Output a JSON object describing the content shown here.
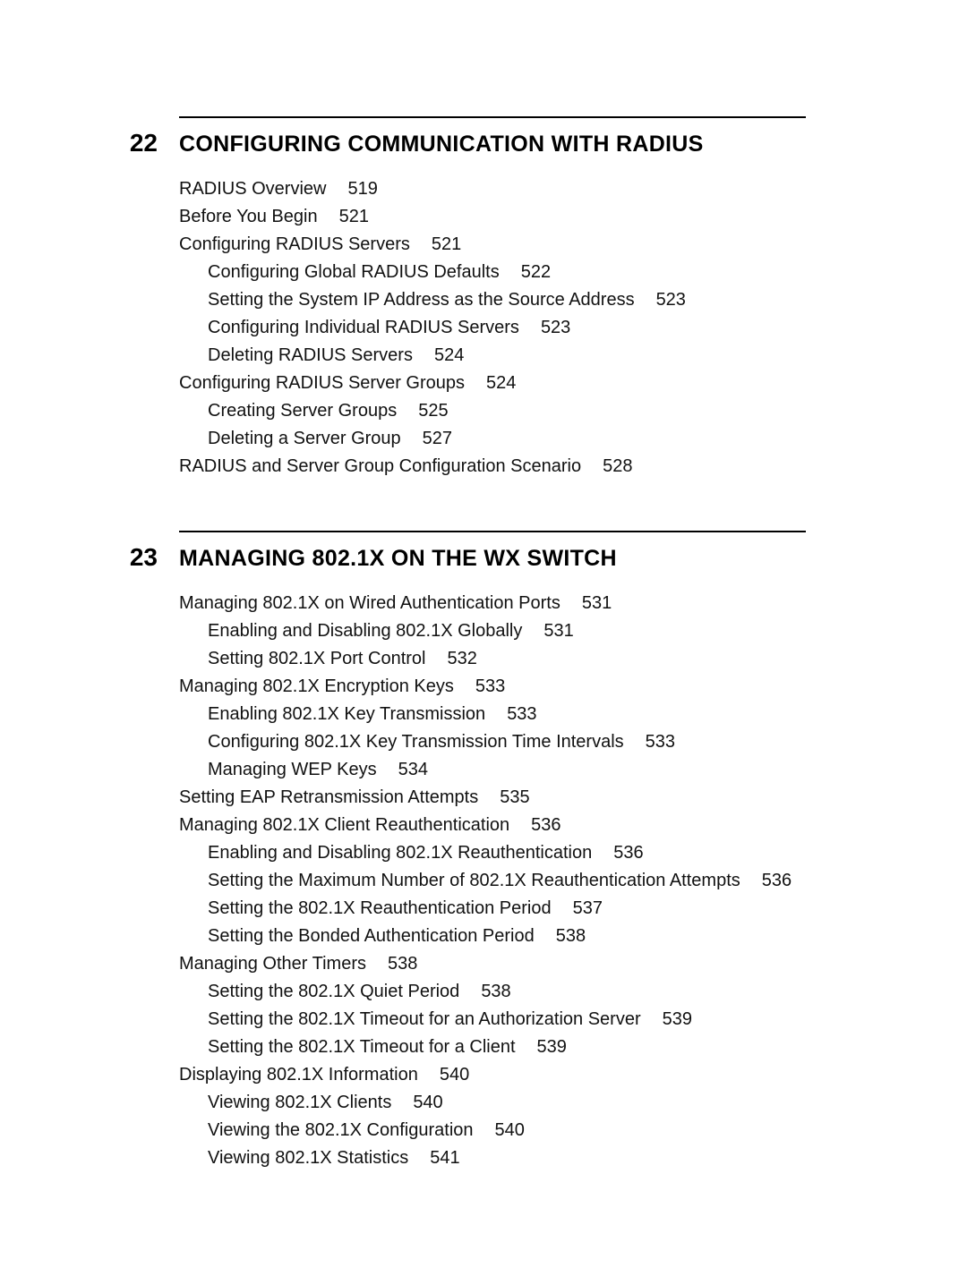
{
  "chapters": [
    {
      "number": "22",
      "title_parts": [
        "C",
        "ONFIGURING",
        " C",
        "OMMUNICATION",
        " ",
        "WITH",
        " RADIUS"
      ],
      "entries": [
        {
          "level": 1,
          "text": "RADIUS Overview",
          "page": "519"
        },
        {
          "level": 1,
          "text": "Before You Begin",
          "page": "521"
        },
        {
          "level": 1,
          "text": "Configuring RADIUS Servers",
          "page": "521"
        },
        {
          "level": 2,
          "text": "Configuring Global RADIUS Defaults",
          "page": "522"
        },
        {
          "level": 2,
          "text": "Setting the System IP Address as the Source Address",
          "page": "523"
        },
        {
          "level": 2,
          "text": "Configuring Individual RADIUS Servers",
          "page": "523"
        },
        {
          "level": 2,
          "text": "Deleting RADIUS Servers",
          "page": "524"
        },
        {
          "level": 1,
          "text": "Configuring RADIUS Server Groups",
          "page": "524"
        },
        {
          "level": 2,
          "text": "Creating Server Groups",
          "page": "525"
        },
        {
          "level": 2,
          "text": "Deleting a Server Group",
          "page": "527"
        },
        {
          "level": 1,
          "text": "RADIUS and Server Group Configuration Scenario",
          "page": "528"
        }
      ]
    },
    {
      "number": "23",
      "title_parts": [
        "M",
        "ANAGING",
        " 802.1X ",
        "ON",
        " ",
        "THE",
        " WX S",
        "WITCH"
      ],
      "entries": [
        {
          "level": 1,
          "text": "Managing 802.1X on Wired Authentication Ports",
          "page": "531"
        },
        {
          "level": 2,
          "text": "Enabling and Disabling 802.1X Globally",
          "page": "531"
        },
        {
          "level": 2,
          "text": "Setting 802.1X Port Control",
          "page": "532"
        },
        {
          "level": 1,
          "text": "Managing 802.1X Encryption Keys",
          "page": "533"
        },
        {
          "level": 2,
          "text": "Enabling 802.1X Key Transmission",
          "page": "533"
        },
        {
          "level": 2,
          "text": "Configuring 802.1X Key Transmission Time Intervals",
          "page": "533"
        },
        {
          "level": 2,
          "text": "Managing WEP Keys",
          "page": "534"
        },
        {
          "level": 1,
          "text": "Setting EAP Retransmission Attempts",
          "page": "535"
        },
        {
          "level": 1,
          "text": "Managing 802.1X Client Reauthentication",
          "page": "536"
        },
        {
          "level": 2,
          "text": "Enabling and Disabling 802.1X Reauthentication",
          "page": "536"
        },
        {
          "level": 2,
          "text": "Setting the Maximum Number of 802.1X Reauthentication Attempts",
          "page": "536"
        },
        {
          "level": 2,
          "text": "Setting the 802.1X Reauthentication Period",
          "page": "537"
        },
        {
          "level": 2,
          "text": "Setting the Bonded Authentication Period",
          "page": "538"
        },
        {
          "level": 1,
          "text": "Managing Other Timers",
          "page": "538"
        },
        {
          "level": 2,
          "text": "Setting the 802.1X Quiet Period",
          "page": "538"
        },
        {
          "level": 2,
          "text": "Setting the 802.1X Timeout for an Authorization Server",
          "page": "539"
        },
        {
          "level": 2,
          "text": "Setting the 802.1X Timeout for a Client",
          "page": "539"
        },
        {
          "level": 1,
          "text": "Displaying 802.1X Information",
          "page": "540"
        },
        {
          "level": 2,
          "text": "Viewing 802.1X Clients",
          "page": "540"
        },
        {
          "level": 2,
          "text": "Viewing the 802.1X Configuration",
          "page": "540"
        },
        {
          "level": 2,
          "text": "Viewing 802.1X Statistics",
          "page": "541"
        }
      ]
    }
  ]
}
